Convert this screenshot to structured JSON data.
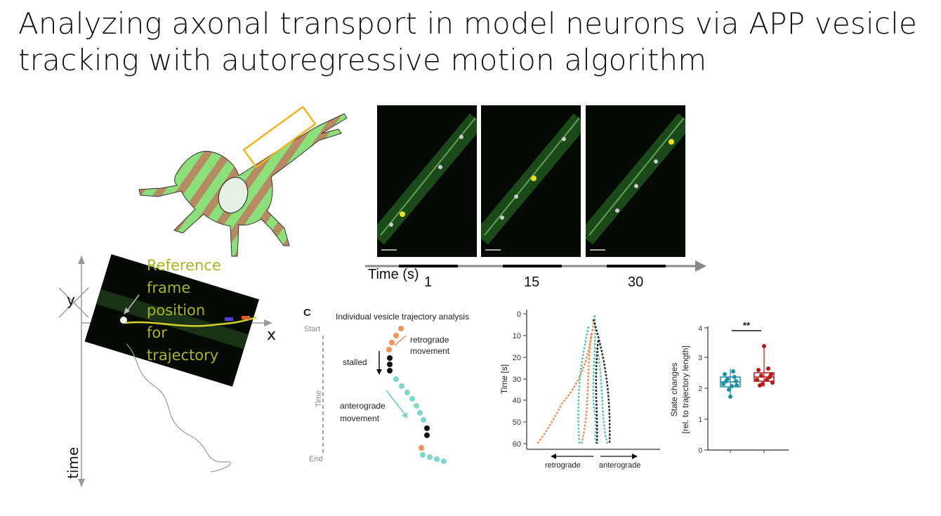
{
  "title": {
    "line1": "Analyzing axonal transport in model neurons via APP vesicle",
    "line2": "tracking with autoregressive motion algorithm"
  },
  "timeline": {
    "axis_label": "Time (s)",
    "frames": [
      "1",
      "15",
      "30"
    ]
  },
  "reference_frame": {
    "label_lines": [
      "Reference",
      "frame",
      "position",
      "for",
      "trajectory"
    ],
    "axis_x": "x",
    "axis_y": "y",
    "axis_time": "time"
  },
  "panel_c": {
    "letter": "C",
    "heading": "Individual vesicle trajectory analysis",
    "start": "Start",
    "end": "End",
    "time": "Time",
    "retrograde_line1": "retrograde",
    "retrograde_line2": "movement",
    "stalled": "stalled",
    "anterograde_line1": "anterograde",
    "anterograde_line2": "movement"
  },
  "kymograph": {
    "ylabel": "Time [s]",
    "yticks": [
      "0",
      "10",
      "20",
      "30",
      "40",
      "50",
      "60"
    ],
    "left_label": "retrograde",
    "right_label": "anterograde"
  },
  "boxplot": {
    "ylabel_line1": "State changes",
    "ylabel_line2": "[rel. to trajectory length]",
    "yticks": [
      "0",
      "1",
      "2",
      "3",
      "4"
    ],
    "significance": "**",
    "colors": {
      "group1": "#1f8fa8",
      "group2": "#b41a1a"
    }
  },
  "colors": {
    "neuron_green": "#8be07a",
    "neuron_stripe": "#b68a63",
    "highlight_box": "#f0b323",
    "reference_text": "#a8b324"
  }
}
